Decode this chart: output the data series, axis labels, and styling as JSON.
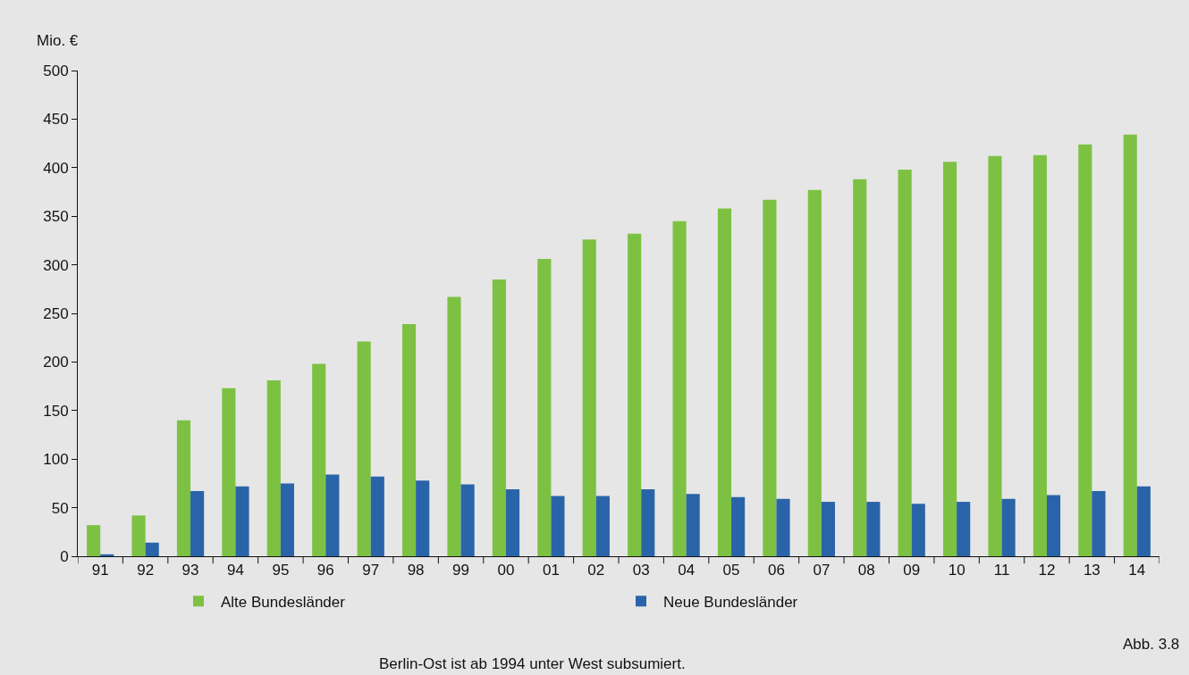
{
  "chart_data": {
    "type": "bar",
    "ylabel": "Mio. €",
    "categories": [
      "91",
      "92",
      "93",
      "94",
      "95",
      "96",
      "97",
      "98",
      "99",
      "00",
      "01",
      "02",
      "03",
      "04",
      "05",
      "06",
      "07",
      "08",
      "09",
      "10",
      "11",
      "12",
      "13",
      "14"
    ],
    "series": [
      {
        "name": "Alte Bundesländer",
        "color": "#7dc142",
        "values": [
          32,
          42,
          140,
          173,
          181,
          198,
          221,
          239,
          267,
          285,
          306,
          326,
          332,
          345,
          358,
          367,
          377,
          388,
          398,
          406,
          412,
          413,
          424,
          434
        ]
      },
      {
        "name": "Neue Bundesländer",
        "color": "#2a64a8",
        "values": [
          2,
          14,
          67,
          72,
          75,
          84,
          82,
          78,
          74,
          69,
          62,
          62,
          69,
          64,
          61,
          59,
          56,
          56,
          54,
          56,
          59,
          63,
          67,
          72
        ]
      }
    ],
    "ylim": [
      0,
      500
    ],
    "yticks": [
      0,
      50,
      100,
      150,
      200,
      250,
      300,
      350,
      400,
      450,
      500
    ],
    "grid": false,
    "legend": "bottom",
    "annotations": [
      "Berlin-Ost ist ab 1994 unter West subsumiert.",
      "Abb. 3.8"
    ]
  }
}
